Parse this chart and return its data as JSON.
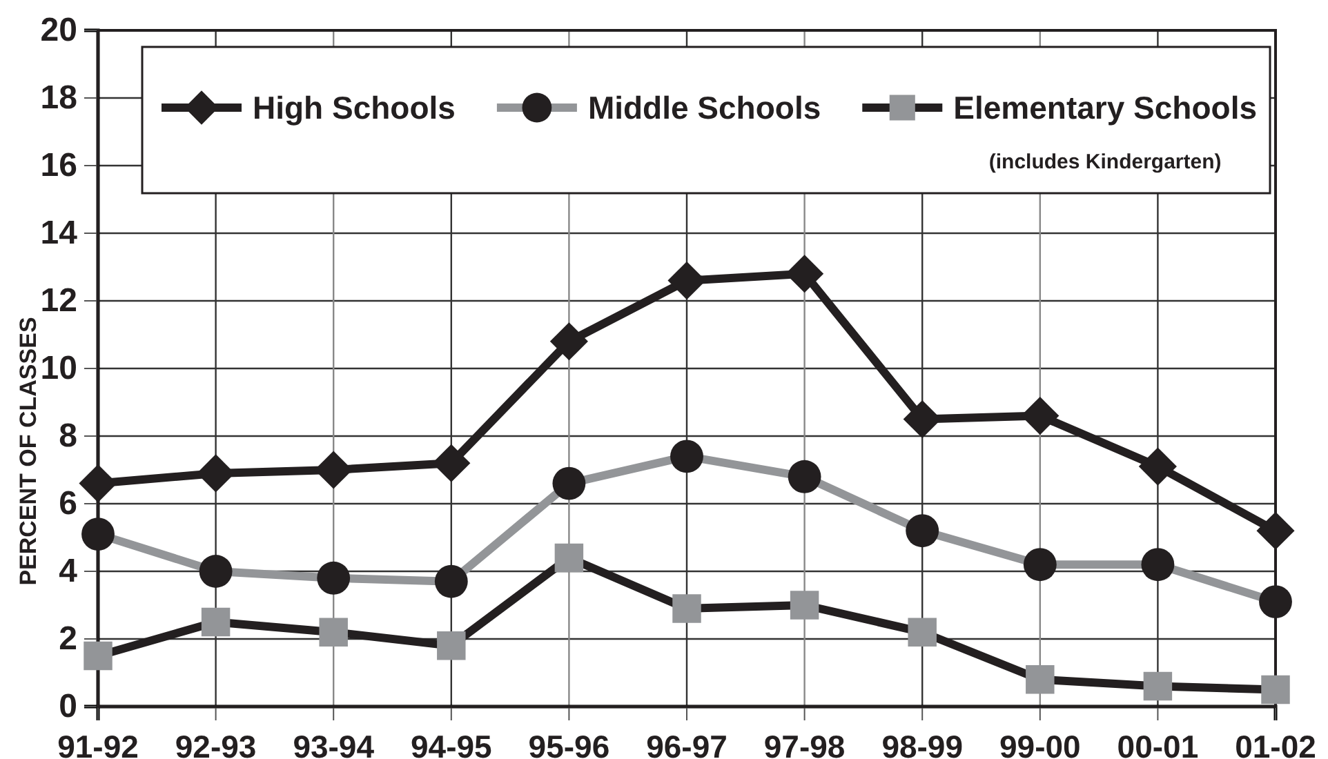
{
  "chart_data": {
    "type": "line",
    "ylabel": "PERCENT OF CLASSES",
    "categories": [
      "91-92",
      "92-93",
      "93-94",
      "94-95",
      "95-96",
      "96-97",
      "97-98",
      "98-99",
      "99-00",
      "00-01",
      "01-02"
    ],
    "series": [
      {
        "name": "High Schools",
        "color": "#231f20",
        "marker": "diamond",
        "colors": [
          "#231f20",
          "#231f20",
          "#231f20",
          "#231f20",
          "#231f20",
          "#231f20",
          "#231f20",
          "#231f20",
          "#231f20",
          "#231f20",
          "#231f20"
        ],
        "values": [
          6.6,
          6.9,
          7.0,
          7.2,
          10.8,
          12.6,
          12.8,
          8.5,
          8.6,
          7.1,
          5.2
        ]
      },
      {
        "name": "Middle Schools",
        "color": "#939598",
        "marker": "circle",
        "colors": [
          "#231f20",
          "#231f20",
          "#231f20",
          "#231f20",
          "#231f20",
          "#231f20",
          "#231f20",
          "#231f20",
          "#231f20",
          "#231f20",
          "#231f20"
        ],
        "values": [
          5.1,
          4.0,
          3.8,
          3.7,
          6.6,
          7.4,
          6.8,
          5.2,
          4.2,
          4.2,
          3.1
        ]
      },
      {
        "name": "Elementary Schools",
        "color": "#231f20",
        "marker": "square",
        "colors": [
          "#939598",
          "#939598",
          "#939598",
          "#939598",
          "#939598",
          "#939598",
          "#939598",
          "#939598",
          "#939598",
          "#939598",
          "#939598"
        ],
        "values": [
          1.5,
          2.5,
          2.2,
          1.8,
          4.4,
          2.9,
          3.0,
          2.2,
          0.8,
          0.6,
          0.5
        ]
      }
    ],
    "annotations": [
      "(includes Kindergarten)"
    ],
    "ylim": [
      0,
      20
    ],
    "yticks": [
      0,
      2,
      4,
      6,
      8,
      10,
      12,
      14,
      16,
      18,
      20
    ],
    "grid": true,
    "legend": "top",
    "line_style": "solid"
  }
}
